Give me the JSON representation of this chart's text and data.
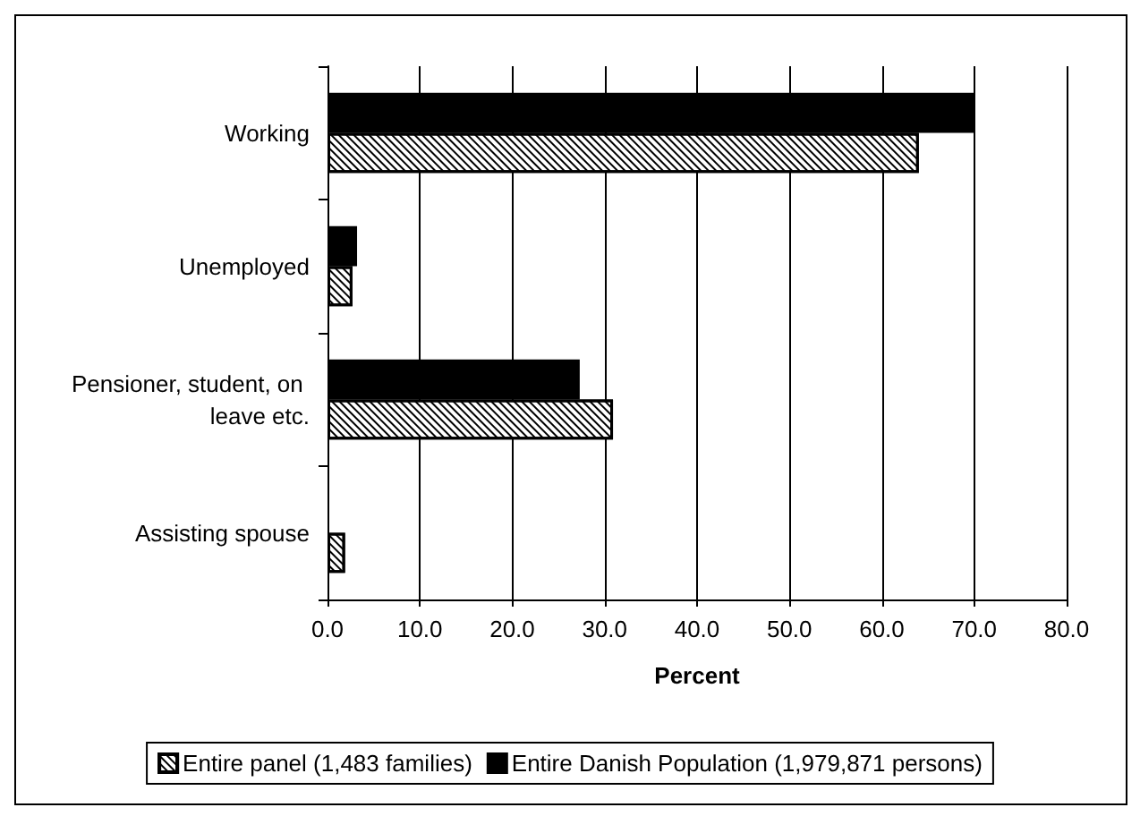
{
  "chart_data": {
    "type": "bar",
    "orientation": "horizontal",
    "categories": [
      "Working",
      "Unemployed",
      "Pensioner, student, on leave etc.",
      "Assisting spouse"
    ],
    "series": [
      {
        "name": "Entire panel (1,483 families)",
        "color": "#ffffff",
        "values": [
          64.0,
          2.7,
          30.9,
          1.9
        ]
      },
      {
        "name": "Entire Danish Population (1,979,871 persons)",
        "color": "#000000",
        "values": [
          70.0,
          3.2,
          27.3,
          null
        ]
      }
    ],
    "xlabel": "Percent",
    "xlim": [
      0,
      80
    ],
    "xticks": [
      {
        "value": 0,
        "label": "0.0"
      },
      {
        "value": 10,
        "label": "10.0"
      },
      {
        "value": 20,
        "label": "20.0"
      },
      {
        "value": 30,
        "label": "30.0"
      },
      {
        "value": 40,
        "label": "40.0"
      },
      {
        "value": 50,
        "label": "50.0"
      },
      {
        "value": 60,
        "label": "60.0"
      },
      {
        "value": 70,
        "label": "70.0"
      },
      {
        "value": 80,
        "label": "80.0"
      }
    ],
    "grid": "x",
    "legend": "bottom"
  }
}
